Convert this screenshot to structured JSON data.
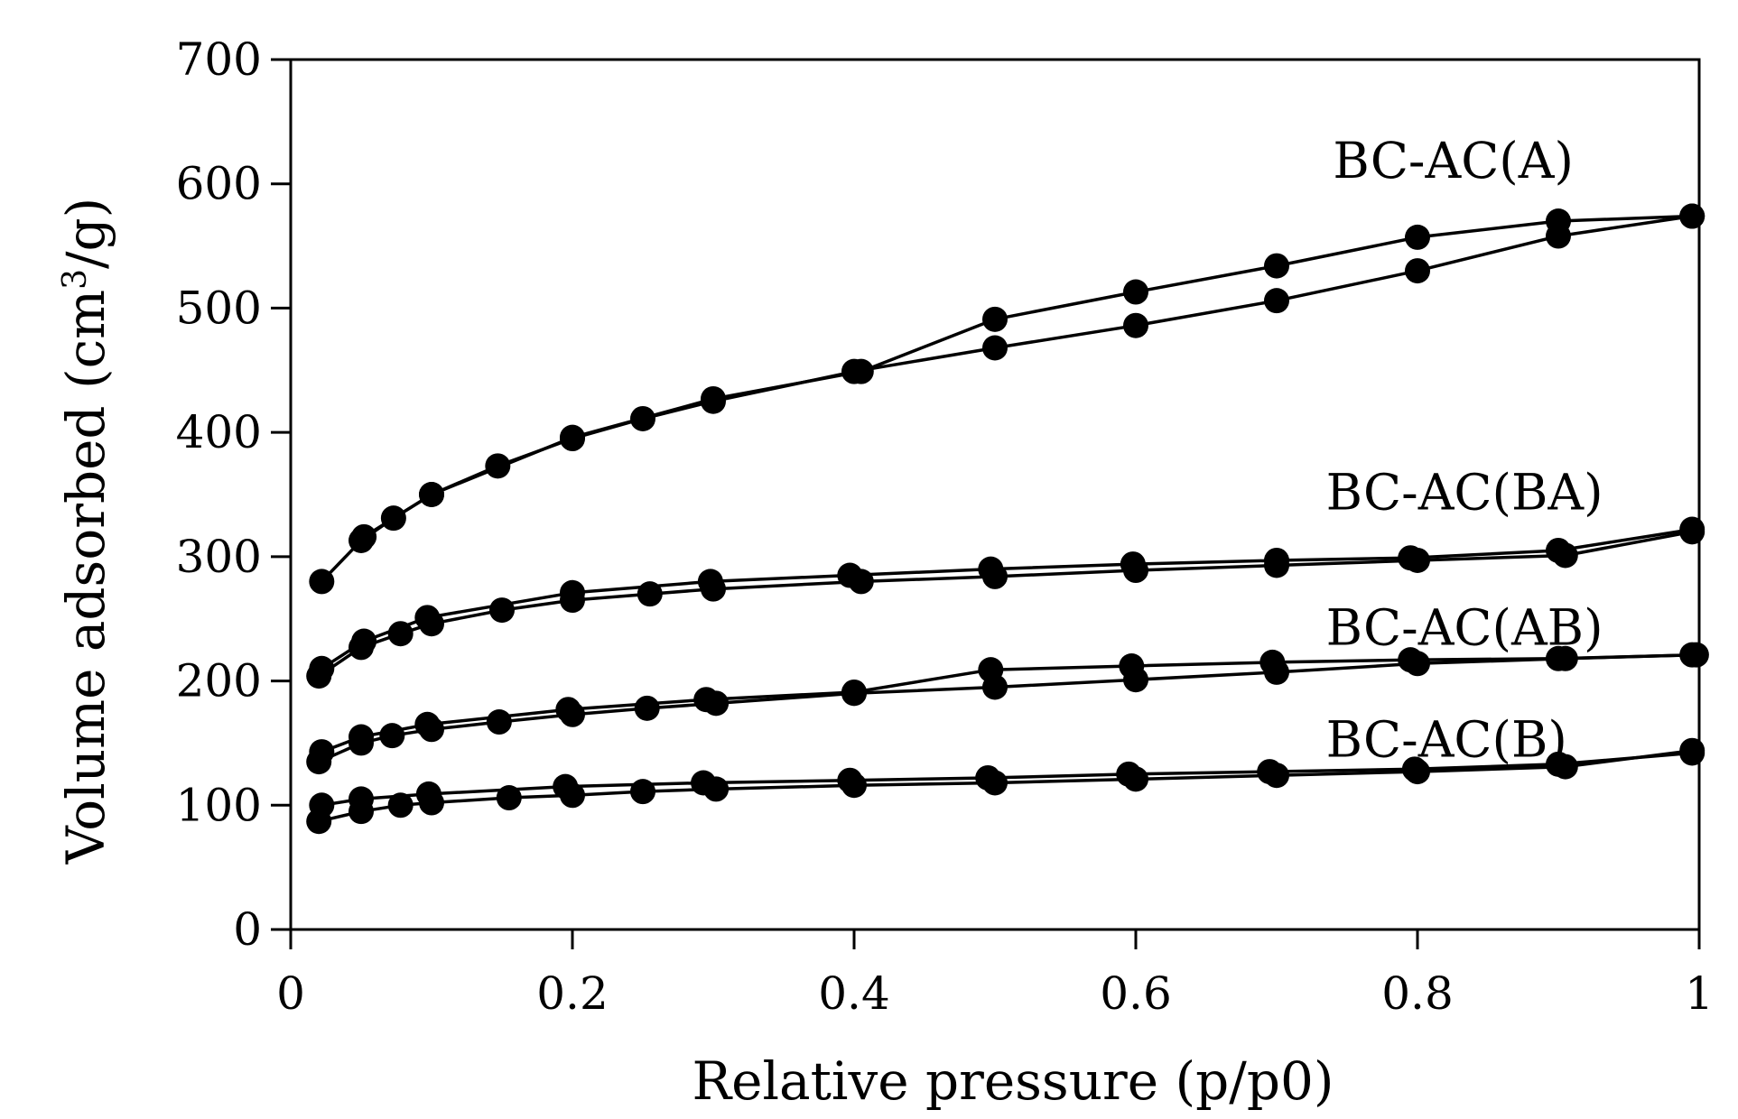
{
  "chart_data": {
    "type": "line",
    "title": "",
    "xlabel": "Relative pressure (p/p0)",
    "ylabel_parts": {
      "before": "Volume adsorbed  (cm",
      "sup": "3",
      "after": "/g)"
    },
    "xlim": [
      0,
      1
    ],
    "ylim": [
      0,
      700
    ],
    "xticks": [
      0,
      0.2,
      0.4,
      0.6,
      0.8,
      1
    ],
    "xtick_labels": [
      "0",
      "0.2",
      "0.4",
      "0.6",
      "0.8",
      "1"
    ],
    "yticks": [
      0,
      100,
      200,
      300,
      400,
      500,
      600,
      700
    ],
    "ytick_labels": [
      "0",
      "100",
      "200",
      "300",
      "400",
      "500",
      "600",
      "700"
    ],
    "marker": "filled-circle",
    "line_color": "#000000",
    "series": [
      {
        "name": "BC-AC(A)",
        "label": "BC-AC(A)",
        "label_anchor": [
          0.74,
          605
        ],
        "adsorption": {
          "x": [
            0.022,
            0.05,
            0.073,
            0.1,
            0.147,
            0.2,
            0.25,
            0.3,
            0.4,
            0.5,
            0.6,
            0.7,
            0.8,
            0.9,
            0.995
          ],
          "y": [
            280,
            313,
            331,
            350,
            373,
            395,
            411,
            425,
            449,
            468,
            486,
            506,
            530,
            558,
            574
          ]
        },
        "desorption": {
          "x": [
            0.995,
            0.9,
            0.8,
            0.7,
            0.6,
            0.5,
            0.405,
            0.3,
            0.2,
            0.1,
            0.052
          ],
          "y": [
            574,
            570,
            557,
            534,
            513,
            491,
            449,
            427,
            396,
            350,
            316
          ]
        }
      },
      {
        "name": "BC-AC(BA)",
        "label": "BC-AC(BA)",
        "label_anchor": [
          0.735,
          338
        ],
        "adsorption": {
          "x": [
            0.02,
            0.05,
            0.078,
            0.1,
            0.15,
            0.2,
            0.255,
            0.3,
            0.405,
            0.5,
            0.6,
            0.7,
            0.8,
            0.905,
            0.995
          ],
          "y": [
            204,
            227,
            238,
            246,
            257,
            265,
            270,
            274,
            280,
            284,
            289,
            293,
            297,
            301,
            320
          ]
        },
        "desorption": {
          "x": [
            0.995,
            0.9,
            0.795,
            0.7,
            0.598,
            0.497,
            0.397,
            0.298,
            0.2,
            0.097,
            0.052,
            0.022
          ],
          "y": [
            322,
            305,
            299,
            297,
            294,
            290,
            285,
            280,
            271,
            251,
            232,
            210
          ]
        }
      },
      {
        "name": "BC-AC(AB)",
        "label": "BC-AC(AB)",
        "label_anchor": [
          0.735,
          229
        ],
        "adsorption": {
          "x": [
            0.02,
            0.05,
            0.072,
            0.1,
            0.148,
            0.2,
            0.253,
            0.302,
            0.4,
            0.5,
            0.6,
            0.7,
            0.8,
            0.905,
            0.995
          ],
          "y": [
            135,
            150,
            156,
            161,
            167,
            173,
            178,
            182,
            190,
            195,
            201,
            207,
            214,
            218,
            221
          ]
        },
        "desorption": {
          "x": [
            0.998,
            0.9,
            0.795,
            0.697,
            0.597,
            0.497,
            0.4,
            0.295,
            0.197,
            0.097,
            0.05,
            0.022
          ],
          "y": [
            221,
            218,
            217,
            215,
            212,
            209,
            191,
            185,
            177,
            165,
            155,
            143
          ]
        }
      },
      {
        "name": "BC-AC(B)",
        "label": "BC-AC(B)",
        "label_anchor": [
          0.735,
          139
        ],
        "adsorption": {
          "x": [
            0.02,
            0.05,
            0.078,
            0.1,
            0.155,
            0.2,
            0.25,
            0.302,
            0.4,
            0.5,
            0.6,
            0.7,
            0.8,
            0.905,
            0.995
          ],
          "y": [
            87,
            95,
            100,
            102,
            106,
            108,
            111,
            113,
            116,
            118,
            121,
            124,
            127,
            131,
            144
          ]
        },
        "desorption": {
          "x": [
            0.995,
            0.9,
            0.798,
            0.695,
            0.595,
            0.495,
            0.397,
            0.293,
            0.195,
            0.098,
            0.05,
            0.022
          ],
          "y": [
            142,
            133,
            129,
            127,
            125,
            122,
            120,
            118,
            115,
            109,
            105,
            100
          ]
        }
      }
    ]
  }
}
